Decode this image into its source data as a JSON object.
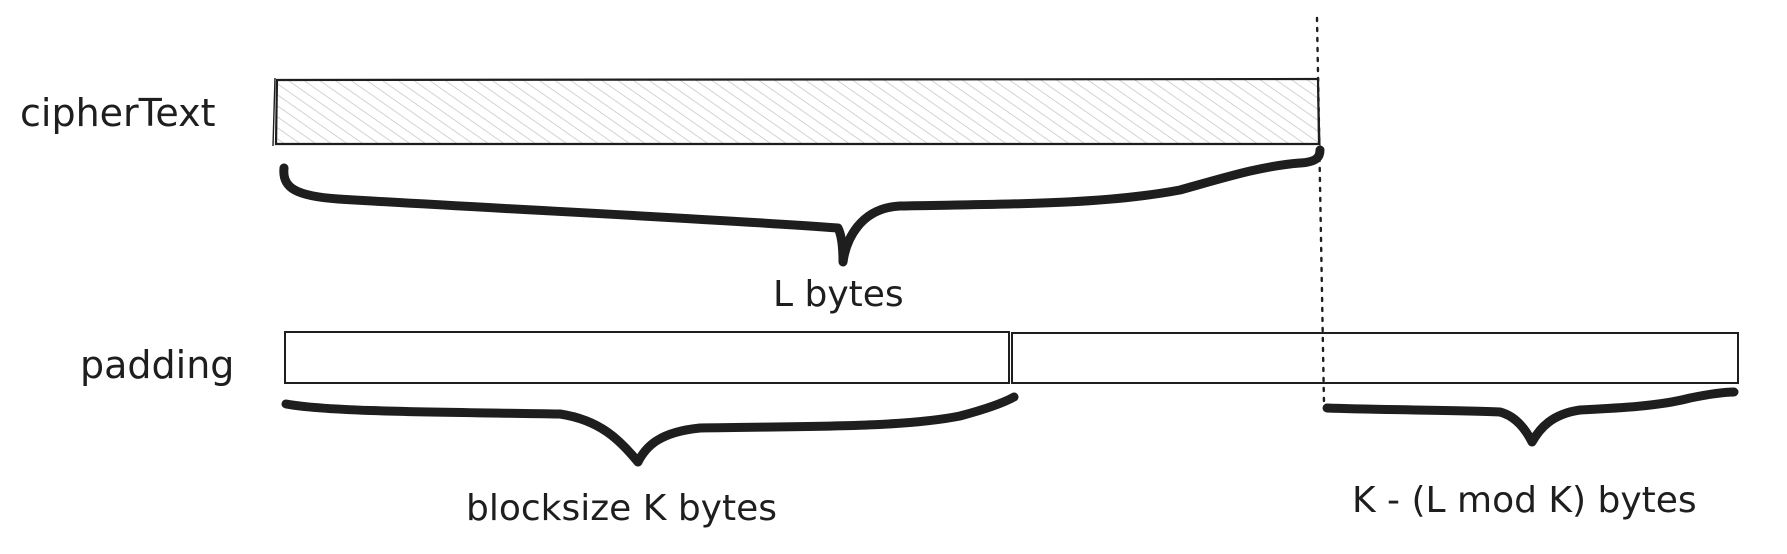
{
  "diagram": {
    "rows": {
      "ciphertext": {
        "label": "cipherText"
      },
      "padding": {
        "label": "padding"
      }
    },
    "annotations": {
      "ciphertext_length": "L bytes",
      "block_size": "blocksize K bytes",
      "padding_length": "K - (L mod K) bytes"
    },
    "colors": {
      "stroke": "#1e1e1e",
      "hatch": "#c8c8c8",
      "fill": "#ffffff"
    }
  }
}
